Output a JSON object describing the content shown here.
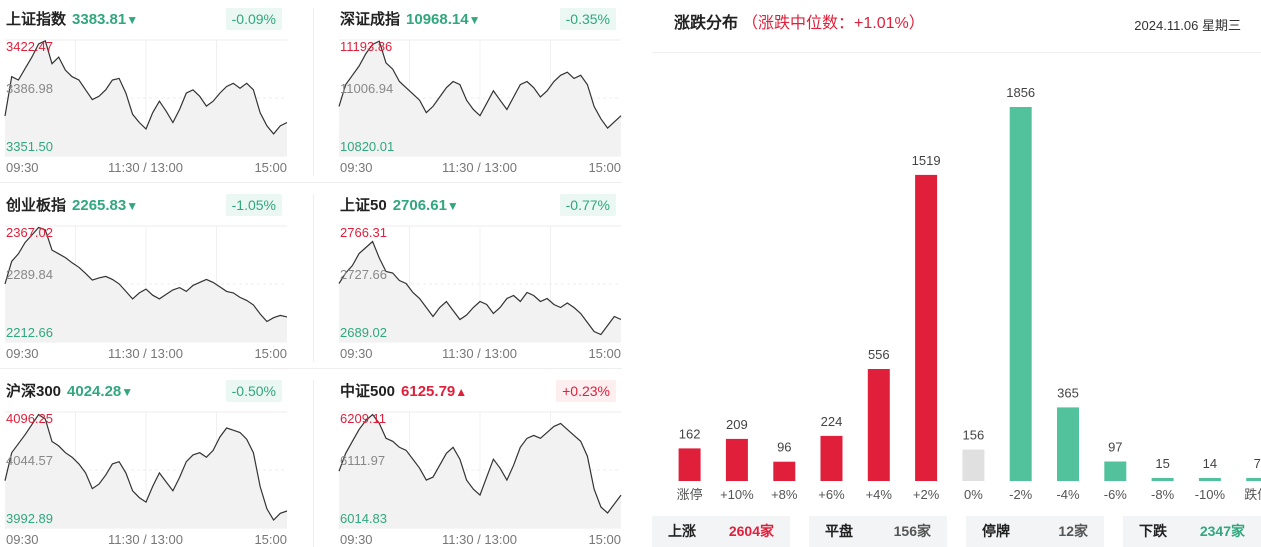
{
  "indices": [
    {
      "name": "上证指数",
      "price": "3383.81",
      "dir": "down",
      "change": "-0.09%",
      "high": "3422.47",
      "mid": "3386.98",
      "low": "3351.50",
      "times": [
        "09:30",
        "11:30 / 13:00",
        "15:00"
      ],
      "series": [
        3376,
        3400,
        3398,
        3405,
        3412,
        3420,
        3422,
        3408,
        3412,
        3404,
        3400,
        3398,
        3392,
        3386,
        3388,
        3392,
        3398,
        3399,
        3390,
        3377,
        3372,
        3368,
        3378,
        3385,
        3379,
        3372,
        3380,
        3390,
        3392,
        3388,
        3382,
        3385,
        3390,
        3394,
        3396,
        3393,
        3396,
        3392,
        3378,
        3370,
        3365,
        3370,
        3372
      ]
    },
    {
      "name": "深证成指",
      "price": "10968.14",
      "dir": "down",
      "change": "-0.35%",
      "high": "11193.86",
      "mid": "11006.94",
      "low": "10820.01",
      "times": [
        "09:30",
        "11:30 / 13:00",
        "15:00"
      ],
      "series": [
        10980,
        11050,
        11080,
        11110,
        11150,
        11180,
        11190,
        11120,
        11100,
        11060,
        11040,
        11020,
        11000,
        10960,
        10980,
        11010,
        11040,
        11060,
        11050,
        11000,
        10970,
        10950,
        10990,
        11030,
        11000,
        10970,
        11010,
        11050,
        11060,
        11040,
        11010,
        11030,
        11060,
        11080,
        11090,
        11070,
        11080,
        11050,
        10980,
        10940,
        10910,
        10930,
        10950
      ]
    },
    {
      "name": "创业板指",
      "price": "2265.83",
      "dir": "down",
      "change": "-1.05%",
      "high": "2367.02",
      "mid": "2289.84",
      "low": "2212.66",
      "times": [
        "09:30",
        "11:30 / 13:00",
        "15:00"
      ],
      "series": [
        2290,
        2320,
        2330,
        2345,
        2355,
        2365,
        2362,
        2335,
        2330,
        2325,
        2318,
        2312,
        2304,
        2295,
        2298,
        2300,
        2296,
        2290,
        2280,
        2270,
        2278,
        2283,
        2275,
        2270,
        2276,
        2282,
        2285,
        2280,
        2288,
        2292,
        2296,
        2292,
        2286,
        2280,
        2278,
        2272,
        2268,
        2262,
        2250,
        2240,
        2245,
        2248,
        2246
      ]
    },
    {
      "name": "上证50",
      "price": "2706.61",
      "dir": "down",
      "change": "-0.77%",
      "high": "2766.31",
      "mid": "2727.66",
      "low": "2689.02",
      "times": [
        "09:30",
        "11:30 / 13:00",
        "15:00"
      ],
      "series": [
        2728,
        2735,
        2740,
        2748,
        2752,
        2756,
        2745,
        2736,
        2735,
        2730,
        2728,
        2722,
        2718,
        2712,
        2706,
        2712,
        2716,
        2710,
        2704,
        2707,
        2712,
        2716,
        2714,
        2708,
        2712,
        2718,
        2720,
        2716,
        2722,
        2720,
        2716,
        2718,
        2714,
        2712,
        2715,
        2712,
        2708,
        2702,
        2696,
        2694,
        2700,
        2706,
        2704
      ]
    },
    {
      "name": "沪深300",
      "price": "4024.28",
      "dir": "down",
      "change": "-0.50%",
      "high": "4096.25",
      "mid": "4044.57",
      "low": "3992.89",
      "times": [
        "09:30",
        "11:30 / 13:00",
        "15:00"
      ],
      "series": [
        4035,
        4060,
        4068,
        4076,
        4085,
        4094,
        4090,
        4070,
        4066,
        4060,
        4056,
        4050,
        4042,
        4028,
        4032,
        4040,
        4050,
        4052,
        4042,
        4026,
        4020,
        4016,
        4030,
        4042,
        4034,
        4026,
        4038,
        4052,
        4058,
        4060,
        4056,
        4062,
        4074,
        4082,
        4080,
        4078,
        4072,
        4060,
        4030,
        4010,
        4000,
        4006,
        4008
      ]
    },
    {
      "name": "中证500",
      "price": "6125.79",
      "dir": "up",
      "change": "+0.23%",
      "high": "6209.11",
      "mid": "6111.97",
      "low": "6014.83",
      "times": [
        "09:30",
        "11:30 / 13:00",
        "15:00"
      ],
      "series": [
        6110,
        6140,
        6160,
        6180,
        6195,
        6205,
        6190,
        6165,
        6160,
        6150,
        6145,
        6130,
        6115,
        6095,
        6100,
        6120,
        6140,
        6150,
        6130,
        6095,
        6080,
        6070,
        6100,
        6130,
        6115,
        6095,
        6120,
        6150,
        6165,
        6170,
        6165,
        6175,
        6185,
        6190,
        6180,
        6170,
        6160,
        6135,
        6080,
        6050,
        6040,
        6055,
        6070
      ]
    }
  ],
  "distribution": {
    "title": "涨跌分布",
    "subtitle": "（涨跌中位数：+1.01%）",
    "date": "2024.11.06 星期三",
    "summary": [
      {
        "label": "上涨",
        "value": "2604家",
        "color": "#e0203b"
      },
      {
        "label": "平盘",
        "value": "156家",
        "color": "#555555"
      },
      {
        "label": "停牌",
        "value": "12家",
        "color": "#555555"
      },
      {
        "label": "下跌",
        "value": "2347家",
        "color": "#31a77e"
      }
    ]
  },
  "chart_data": {
    "type": "bar",
    "title": "涨跌分布",
    "categories": [
      "涨停",
      "+10%",
      "+8%",
      "+6%",
      "+4%",
      "+2%",
      "0%",
      "-2%",
      "-4%",
      "-6%",
      "-8%",
      "-10%",
      "跌停"
    ],
    "values": [
      162,
      209,
      96,
      224,
      556,
      1519,
      156,
      1856,
      365,
      97,
      15,
      14,
      7
    ],
    "colors": [
      "#e0203b",
      "#e0203b",
      "#e0203b",
      "#e0203b",
      "#e0203b",
      "#e0203b",
      "#e0e0e0",
      "#52c29d",
      "#52c29d",
      "#52c29d",
      "#52c29d",
      "#52c29d",
      "#52c29d"
    ],
    "ylim": [
      0,
      1856
    ]
  },
  "colors": {
    "up": "#e0203b",
    "down": "#31a77e",
    "flat": "#e0e0e0"
  }
}
